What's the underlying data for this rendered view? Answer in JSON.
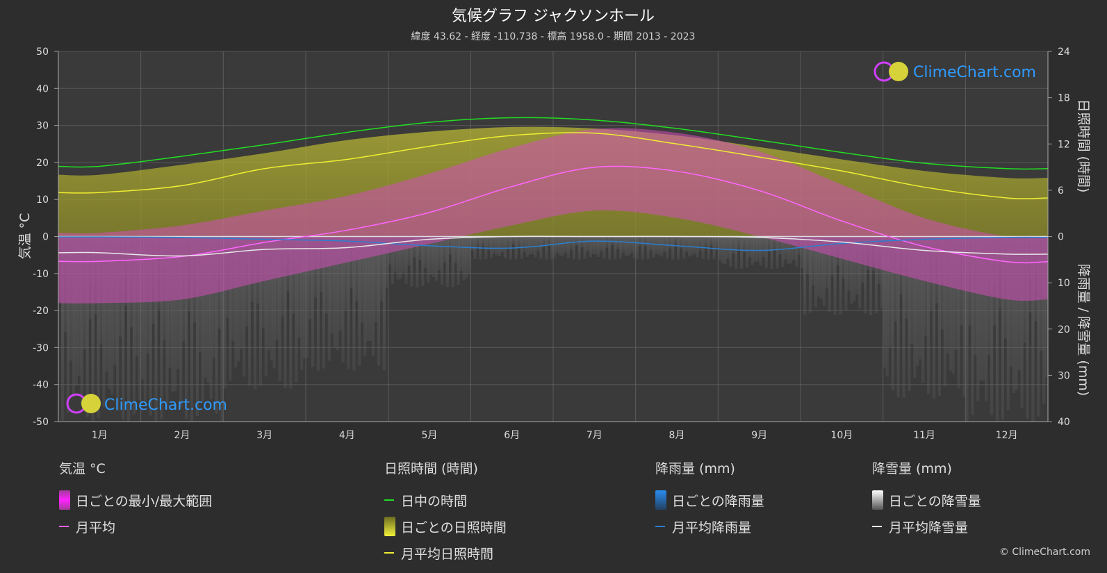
{
  "title": "気候グラフ ジャクソンホール",
  "subtitle": "緯度 43.62 - 経度 -110.738 - 標高 1958.0 - 期間 2013 - 2023",
  "watermark": "ClimeChart.com",
  "copyright": "© ClimeChart.com",
  "colors": {
    "background": "#2d2d2d",
    "plot_background": "#3a3a3a",
    "grid": "#6a6a6a",
    "daylight": "#22dd22",
    "sunshine": "#eeee33",
    "sunshine_fill": "#a6a430",
    "temp_range": "#d14fb8",
    "temp_mean": "#ff66ff",
    "rain": "#2a7fd0",
    "snow": "#e8e8e8",
    "brand_blue": "#2f9bff"
  },
  "legend": {
    "temperature": {
      "header": "気温 °C",
      "items": [
        "日ごとの最小/最大範囲",
        "月平均"
      ]
    },
    "sunshine": {
      "header": "日照時間 (時間)",
      "items": [
        "日中の時間",
        "日ごとの日照時間",
        "月平均日照時間"
      ]
    },
    "rain": {
      "header": "降雨量 (mm)",
      "items": [
        "日ごとの降雨量",
        "月平均降雨量"
      ]
    },
    "snow": {
      "header": "降雪量 (mm)",
      "items": [
        "日ごとの降雪量",
        "月平均降雪量"
      ]
    }
  },
  "chart_data": {
    "type": "line",
    "title": "気候グラフ ジャクソンホール",
    "months": [
      "1月",
      "2月",
      "3月",
      "4月",
      "5月",
      "6月",
      "7月",
      "8月",
      "9月",
      "10月",
      "11月",
      "12月"
    ],
    "axes": {
      "left": {
        "label": "気温 °C",
        "ticks": [
          50,
          40,
          30,
          20,
          10,
          0,
          -10,
          -20,
          -30,
          -40,
          -50
        ],
        "range": [
          -50,
          50
        ]
      },
      "right_top": {
        "label": "日照時間 (時間)",
        "ticks": [
          24,
          18,
          12,
          6,
          0
        ],
        "range": [
          0,
          24
        ]
      },
      "right_bottom": {
        "label": "降雨量 / 降雪量 (mm)",
        "ticks": [
          0,
          10,
          20,
          30,
          40
        ],
        "range": [
          0,
          40
        ]
      }
    },
    "grid": true,
    "series": [
      {
        "name": "日中の時間",
        "unit": "hours",
        "values": [
          9.1,
          10.4,
          11.9,
          13.5,
          14.8,
          15.4,
          15.1,
          14.0,
          12.5,
          10.9,
          9.5,
          8.8
        ]
      },
      {
        "name": "月平均日照時間",
        "unit": "hours",
        "values": [
          5.7,
          6.6,
          8.8,
          10.0,
          11.7,
          13.1,
          13.4,
          12.0,
          10.3,
          8.5,
          6.4,
          5.0
        ]
      },
      {
        "name": "日ごとの日照時間",
        "unit": "hours",
        "values": [
          8.0,
          9.3,
          10.8,
          12.5,
          13.6,
          14.2,
          14.0,
          13.1,
          11.6,
          10.0,
          8.5,
          7.6
        ]
      },
      {
        "name": "月平均",
        "unit": "°C",
        "values": [
          -6.7,
          -5.4,
          -1.6,
          1.7,
          6.5,
          13.5,
          18.7,
          17.6,
          12.4,
          4.2,
          -2.7,
          -6.8
        ]
      },
      {
        "name": "日ごとの最小/最大範囲",
        "unit": "°C",
        "min": [
          -18,
          -17,
          -12,
          -7,
          -2,
          3,
          7,
          5,
          0,
          -6,
          -12,
          -17
        ],
        "max": [
          1,
          3,
          7,
          11,
          17,
          24,
          29,
          28,
          23,
          14,
          5,
          0
        ]
      },
      {
        "name": "月平均降雨量",
        "unit": "mm",
        "values": [
          0.1,
          0.2,
          0.6,
          1.0,
          2.0,
          2.5,
          1.0,
          2.0,
          3.0,
          1.5,
          0.6,
          0.2
        ]
      },
      {
        "name": "月平均降雪量",
        "unit": "mm",
        "values": [
          3.5,
          4.2,
          2.8,
          2.4,
          0.6,
          0.0,
          0.0,
          0.0,
          0.2,
          1.2,
          3.0,
          3.8
        ]
      }
    ]
  }
}
